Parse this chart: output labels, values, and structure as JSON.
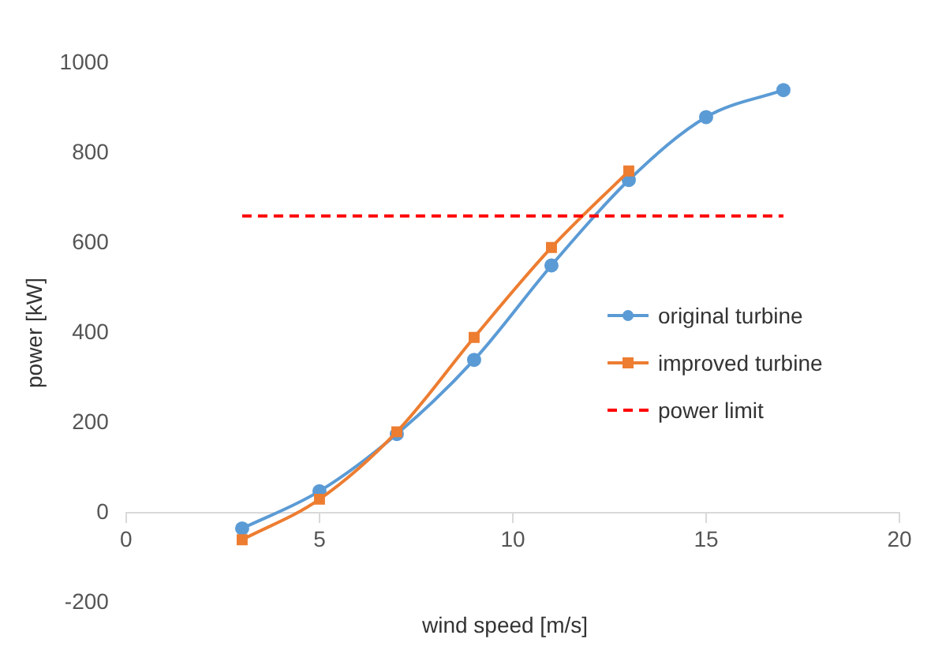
{
  "chart_data": {
    "type": "line",
    "xlabel": "wind speed [m/s]",
    "ylabel": "power [kW]",
    "xlim": [
      0,
      20
    ],
    "xticks": [
      0,
      5,
      10,
      15,
      20
    ],
    "ylim": [
      -200,
      1000
    ],
    "yticks": [
      -200,
      0,
      200,
      400,
      600,
      800,
      1000
    ],
    "grid": false,
    "legend": "right",
    "series": [
      {
        "name": "original turbine",
        "color": "#5b9bd5",
        "marker": "circle",
        "line_style": "solid",
        "x": [
          3,
          5,
          7,
          9,
          11,
          13,
          15,
          17
        ],
        "values": [
          -35,
          48,
          175,
          340,
          550,
          740,
          880,
          940
        ]
      },
      {
        "name": "improved turbine",
        "color": "#ed7d31",
        "marker": "square",
        "line_style": "solid",
        "x": [
          3,
          5,
          7,
          9,
          11,
          13
        ],
        "values": [
          -60,
          30,
          180,
          390,
          590,
          760
        ]
      },
      {
        "name": "power limit",
        "color": "#ff0000",
        "marker": "none",
        "line_style": "dashed",
        "x": [
          3,
          17
        ],
        "values": [
          660,
          660
        ]
      }
    ]
  }
}
